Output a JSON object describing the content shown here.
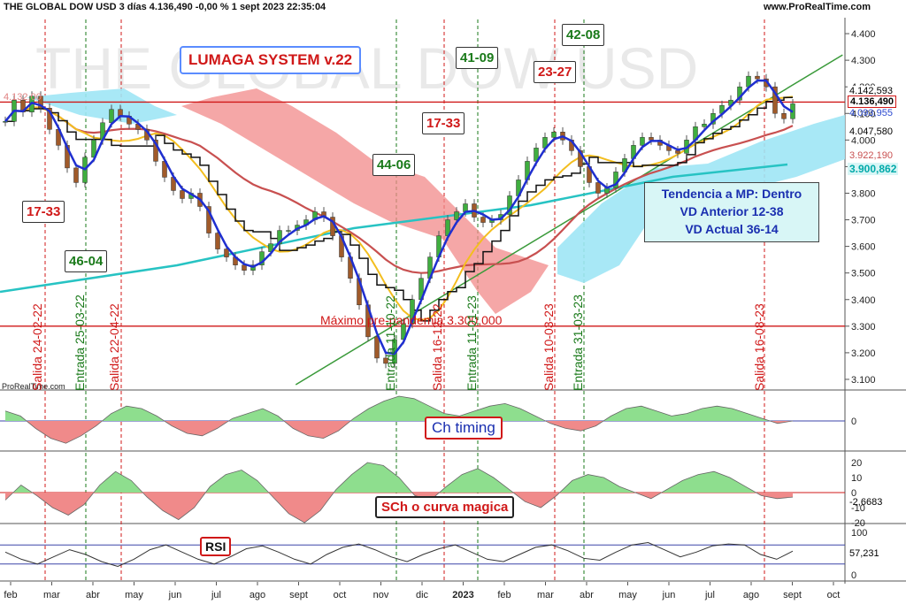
{
  "header": {
    "title": "THE GLOBAL DOW USD 3 días 4.136,490 -0,00 % 1 sept 2023 22:35:04",
    "site": "www.ProRealTime.com",
    "watermark": "THE GLOBAL DOW USD",
    "credit": "ProRealTime.com"
  },
  "annotations": {
    "system_title": "LUMAGA SYSTEM v.22",
    "boxes": [
      {
        "text": "17-33",
        "color": "#d01818"
      },
      {
        "text": "46-04",
        "color": "#1a7a1a"
      },
      {
        "text": "44-06",
        "color": "#1a7a1a"
      },
      {
        "text": "17-33",
        "color": "#d01818"
      },
      {
        "text": "41-09",
        "color": "#1a7a1a"
      },
      {
        "text": "23-27",
        "color": "#d01818"
      },
      {
        "text": "42-08",
        "color": "#1a7a1a"
      }
    ],
    "trend_lines": [
      "Tendencia a MP: Dentro",
      "VD Anterior 12-38",
      "VD Actual  36-14"
    ],
    "max_line_label": "Máximo pre-pandemia  3.300,000",
    "signals": [
      {
        "text": "Salida 24-02-22",
        "type": "exit"
      },
      {
        "text": "Entrada 25-03-22",
        "type": "entry"
      },
      {
        "text": "Salida 22-04-22",
        "type": "exit"
      },
      {
        "text": "Entrada 11-10-22",
        "type": "entry"
      },
      {
        "text": "Salida 16-12-22",
        "type": "exit"
      },
      {
        "text": "Entrada 11-01-23",
        "type": "entry"
      },
      {
        "text": "Salida 10-03-23",
        "type": "exit"
      },
      {
        "text": "Entrada 31-03-23",
        "type": "entry"
      },
      {
        "text": "Salida 16-08-23",
        "type": "exit"
      }
    ],
    "ch_timing_label": "Ch timing",
    "sch_label": "SCh o curva magica",
    "rsi_label": "RSI"
  },
  "price_axis": {
    "ticks": [
      "4.400",
      "4.300",
      "4.200",
      "4.100",
      "4.000",
      "3.900",
      "3.800",
      "3.700",
      "3.600",
      "3.500",
      "3.400",
      "3.300",
      "3.200",
      "3.100"
    ],
    "values": [
      4400,
      4300,
      4200,
      4100,
      4000,
      3900,
      3800,
      3700,
      3600,
      3500,
      3400,
      3300,
      3200,
      3100
    ],
    "labels": [
      {
        "text": "4.142,593",
        "value": 4142.593,
        "color": "#111111",
        "bg": "#ffffff"
      },
      {
        "text": "4.136,490",
        "value": 4136.49,
        "color": "#111111",
        "bg": "#ffffff",
        "bold": true
      },
      {
        "text": "4.093,955",
        "value": 4093.955,
        "color": "#2b4ad0",
        "bg": "#ffffff"
      },
      {
        "text": "4.047,580",
        "value": 4047.58,
        "color": "#111111",
        "bg": "#ffffff"
      },
      {
        "text": "3.922,190",
        "value": 3922.19,
        "color": "#c85050",
        "bg": "#ffffff"
      },
      {
        "text": "3.900,862",
        "value": 3900.862,
        "color": "#00a9a9",
        "bg": "#d8f6f6",
        "bold": true
      }
    ],
    "left_label": "4.132,00"
  },
  "time_axis": {
    "months": [
      "feb",
      "mar",
      "abr",
      "may",
      "jun",
      "jul",
      "ago",
      "sept",
      "oct",
      "nov",
      "dic",
      "2023",
      "feb",
      "mar",
      "abr",
      "may",
      "jun",
      "jul",
      "ago",
      "sept",
      "oct"
    ]
  },
  "panels": {
    "ch": {
      "zero_label": "0"
    },
    "sch": {
      "ticks": [
        "20",
        "10",
        "0",
        "-10",
        "-20"
      ],
      "last": "-2,6683"
    },
    "rsi": {
      "ticks": [
        "100",
        "0"
      ],
      "last": "57,231"
    }
  },
  "colors": {
    "red": "#d01818",
    "green": "#1a7a1a",
    "blue": "#1f2fd0",
    "cyan": "#27c3c3",
    "yellow": "#f3be1f",
    "brown": "#c85050",
    "black": "#111111",
    "cloud_red": "#f28a8a",
    "cloud_cyan": "#9fe6f5"
  },
  "chart_data": {
    "type": "candlestick",
    "title": "THE GLOBAL DOW USD 3 días",
    "ylim": [
      3060,
      4460
    ],
    "close": [
      4070,
      4150,
      4105,
      4165,
      4120,
      4040,
      3980,
      3895,
      3840,
      3935,
      4000,
      4065,
      4115,
      4090,
      4060,
      4040,
      4000,
      3920,
      3860,
      3810,
      3780,
      3800,
      3750,
      3650,
      3590,
      3560,
      3530,
      3510,
      3530,
      3580,
      3610,
      3660,
      3660,
      3680,
      3700,
      3730,
      3710,
      3640,
      3560,
      3480,
      3380,
      3260,
      3180,
      3160,
      3250,
      3310,
      3400,
      3480,
      3560,
      3640,
      3700,
      3730,
      3760,
      3710,
      3690,
      3700,
      3720,
      3790,
      3850,
      3920,
      3970,
      4010,
      4030,
      4000,
      3960,
      3900,
      3840,
      3800,
      3820,
      3880,
      3930,
      3980,
      4010,
      4000,
      3980,
      3960,
      3950,
      4000,
      4050,
      4060,
      4100,
      4130,
      4150,
      4200,
      4240,
      4230,
      4200,
      4100,
      4080,
      4136
    ],
    "series": [
      {
        "name": "",
        "role": "fast",
        "color": "#1f2fd0",
        "last": 4093.955
      },
      {
        "name": "",
        "role": "kijun",
        "color": "#111111",
        "last": 4047.58
      },
      {
        "name": "",
        "role": "mid",
        "color": "#f3be1f"
      },
      {
        "name": "",
        "role": "slow",
        "color": "#c85050",
        "last": 3922.19
      },
      {
        "name": "",
        "role": "long",
        "color": "#27c3c3",
        "last": 3900.862
      }
    ],
    "hlines": [
      4142.593,
      3300
    ],
    "trendline": [
      [
        0.35,
        3080
      ],
      [
        0.93,
        4320
      ]
    ],
    "ch_timing": [
      0.4,
      0.2,
      -0.3,
      -0.7,
      -0.9,
      -0.6,
      -0.2,
      0.3,
      0.6,
      0.5,
      0.2,
      -0.2,
      -0.5,
      -0.6,
      -0.3,
      0.1,
      0.3,
      0.5,
      0.2,
      -0.3,
      -0.6,
      -0.7,
      -0.4,
      0.1,
      0.5,
      0.8,
      1.0,
      0.9,
      0.6,
      0.3,
      0.2,
      0.4,
      0.6,
      0.7,
      0.5,
      0.2,
      -0.1,
      -0.3,
      -0.4,
      -0.2,
      0.2,
      0.5,
      0.6,
      0.4,
      0.2,
      0.3,
      0.5,
      0.6,
      0.5,
      0.3,
      0.1,
      -0.1,
      0.0
    ],
    "sch": [
      -5,
      5,
      -2,
      -10,
      -15,
      -8,
      5,
      14,
      8,
      -3,
      -12,
      -18,
      -10,
      4,
      12,
      15,
      8,
      -3,
      -14,
      -20,
      -12,
      2,
      12,
      20,
      18,
      10,
      -2,
      -5,
      4,
      12,
      16,
      10,
      2,
      -6,
      -10,
      -2,
      8,
      12,
      10,
      4,
      0,
      -4,
      2,
      8,
      12,
      14,
      10,
      4,
      -2,
      -4,
      -3
    ],
    "rsi": [
      55,
      40,
      30,
      45,
      60,
      50,
      35,
      25,
      40,
      60,
      70,
      55,
      40,
      30,
      45,
      62,
      68,
      55,
      40,
      30,
      50,
      65,
      72,
      60,
      45,
      35,
      50,
      62,
      70,
      55,
      40,
      35,
      50,
      65,
      70,
      58,
      42,
      38,
      55,
      70,
      75,
      60,
      45,
      55,
      68,
      72,
      70,
      50,
      40,
      57
    ]
  }
}
